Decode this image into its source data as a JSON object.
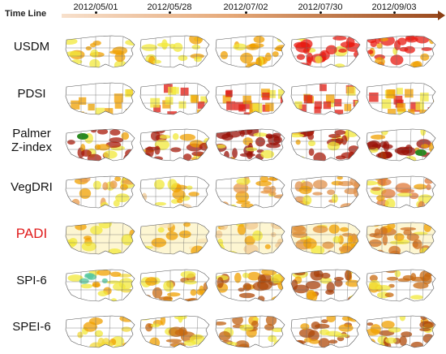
{
  "timeline": {
    "label": "Time Line",
    "dates": [
      "2012/05/01",
      "2012/05/28",
      "2012/07/02",
      "2012/07/30",
      "2012/09/03"
    ]
  },
  "rows": [
    {
      "label": "USDM",
      "highlight": false,
      "colors": [
        "#f2e83a",
        "#f2e83a",
        "#f0a000",
        "#e81a10",
        "#e81a10"
      ],
      "intensity": [
        0.25,
        0.3,
        0.45,
        0.6,
        0.65
      ]
    },
    {
      "label": "PDSI",
      "highlight": false,
      "colors": [
        "#e8a000",
        "#e01a10",
        "#e01a10",
        "#e01a10",
        "#e01a10"
      ],
      "intensity": [
        0.2,
        0.45,
        0.45,
        0.5,
        0.5
      ]
    },
    {
      "label": "Palmer Z-index",
      "highlight": false,
      "colors": [
        "#a81a0a",
        "#a81a0a",
        "#9a1208",
        "#a81a0a",
        "#9a1208"
      ],
      "intensity": [
        0.5,
        0.6,
        0.8,
        0.65,
        0.6
      ]
    },
    {
      "label": "VegDRI",
      "highlight": false,
      "colors": [
        "#e89a4a",
        "#f0c890",
        "#e89a4a",
        "#e0904a",
        "#e07a3a"
      ],
      "intensity": [
        0.35,
        0.2,
        0.4,
        0.5,
        0.55
      ]
    },
    {
      "label": "PADI",
      "highlight": true,
      "colors": [
        "#fdf3c8",
        "#f8e2b0",
        "#f0c890",
        "#e0903a",
        "#d07020"
      ],
      "intensity": [
        0.1,
        0.2,
        0.35,
        0.6,
        0.7
      ]
    },
    {
      "label": "SPI-6",
      "highlight": false,
      "colors": [
        "#f2d83a",
        "#c86a10",
        "#b04a0a",
        "#a8400a",
        "#c86a10"
      ],
      "intensity": [
        0.25,
        0.45,
        0.55,
        0.6,
        0.5
      ]
    },
    {
      "label": "SPEI-6",
      "highlight": false,
      "colors": [
        "#f2d83a",
        "#c86a10",
        "#c06010",
        "#b04a0a",
        "#b04a0a"
      ],
      "intensity": [
        0.25,
        0.45,
        0.5,
        0.6,
        0.6
      ]
    }
  ]
}
